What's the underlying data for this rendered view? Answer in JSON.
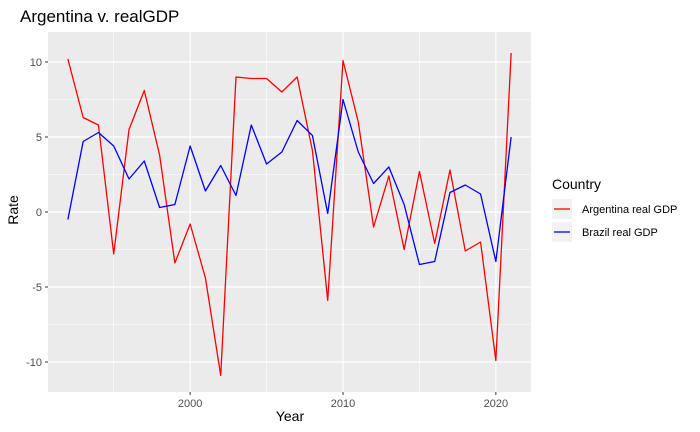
{
  "chart_data": {
    "type": "line",
    "title": "Argentina v. realGDP",
    "xlabel": "Year",
    "ylabel": "Rate",
    "xlim": [
      1990.7,
      2022.3
    ],
    "ylim": [
      -12,
      12
    ],
    "x_ticks": [
      2000,
      2010,
      2020
    ],
    "y_ticks": [
      -10,
      -5,
      0,
      5,
      10
    ],
    "x_tick_labels": [
      "2000",
      "2010",
      "2020"
    ],
    "y_tick_labels": [
      "-10",
      "-5",
      "0",
      "5",
      "10"
    ],
    "grid": true,
    "legend": {
      "title": "Country",
      "placement": "right"
    },
    "x": [
      1992,
      1993,
      1994,
      1995,
      1996,
      1997,
      1998,
      1999,
      2000,
      2001,
      2002,
      2003,
      2004,
      2005,
      2006,
      2007,
      2008,
      2009,
      2010,
      2011,
      2012,
      2013,
      2014,
      2015,
      2016,
      2017,
      2018,
      2019,
      2020,
      2021
    ],
    "series": [
      {
        "name": "Argentina real GDP",
        "color": "#ff0000",
        "values": [
          10.2,
          6.3,
          5.8,
          -2.8,
          5.5,
          8.1,
          3.8,
          -3.4,
          -0.8,
          -4.4,
          -10.9,
          9.0,
          8.9,
          8.9,
          8.0,
          9.0,
          4.1,
          -5.9,
          10.1,
          6.0,
          -1.0,
          2.4,
          -2.5,
          2.7,
          -2.1,
          2.8,
          -2.6,
          -2.0,
          -9.9,
          10.6
        ]
      },
      {
        "name": "Brazil real GDP",
        "color": "#0000ff",
        "values": [
          -0.5,
          4.7,
          5.3,
          4.4,
          2.2,
          3.4,
          0.3,
          0.5,
          4.4,
          1.4,
          3.1,
          1.1,
          5.8,
          3.2,
          4.0,
          6.1,
          5.1,
          -0.1,
          7.5,
          4.0,
          1.9,
          3.0,
          0.5,
          -3.5,
          -3.3,
          1.3,
          1.8,
          1.2,
          -3.3,
          5.0
        ]
      }
    ]
  }
}
